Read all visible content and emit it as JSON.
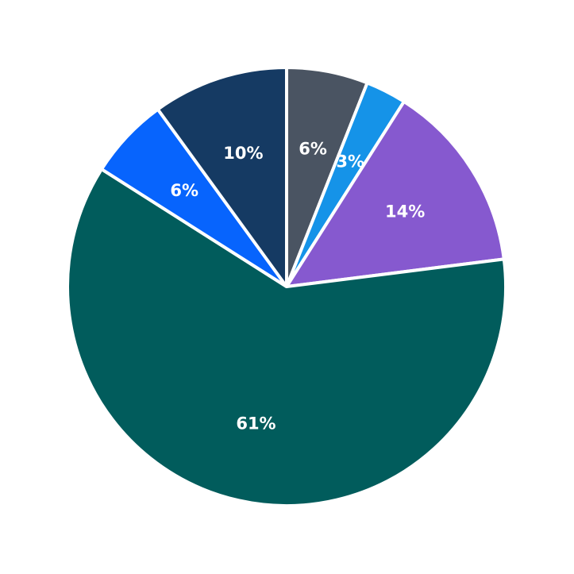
{
  "chart_data": {
    "type": "pie",
    "start_angle_deg": 90,
    "direction": "clockwise",
    "slices": [
      {
        "label": "6%",
        "value": 6,
        "color": "#4a5462"
      },
      {
        "label": "3%",
        "value": 3,
        "color": "#1593e8"
      },
      {
        "label": "14%",
        "value": 14,
        "color": "#8659cf"
      },
      {
        "label": "61%",
        "value": 61,
        "color": "#015c5c"
      },
      {
        "label": "6%",
        "value": 6,
        "color": "#0764fd"
      },
      {
        "label": "10%",
        "value": 10,
        "color": "#153a63"
      }
    ]
  }
}
